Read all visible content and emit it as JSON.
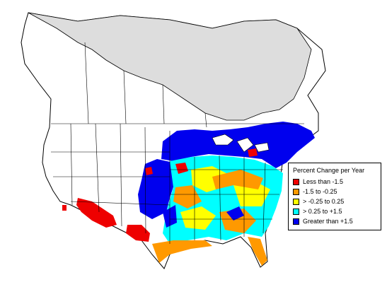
{
  "legend": {
    "title": "Percent Change per Year",
    "items": [
      {
        "label": "Less than -1.5",
        "color": "#ee0000"
      },
      {
        "label": "-1.5 to -0.25",
        "color": "#ff9900"
      },
      {
        "label": "> -0.25 to 0.25",
        "color": "#ffff00"
      },
      {
        "label": "> 0.25 to +1.5",
        "color": "#00ffff"
      },
      {
        "label": "Greater than +1.5",
        "color": "#0000ee"
      }
    ]
  },
  "colors": {
    "land": "#ffffff",
    "no_data_region": "#dddddd",
    "boundary": "#000000"
  }
}
